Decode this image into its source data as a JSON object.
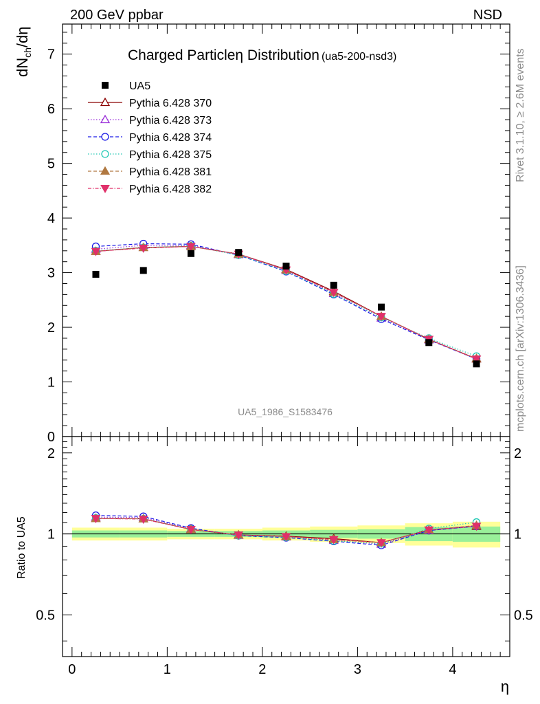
{
  "header": {
    "left": "200 GeV ppbar",
    "right": "NSD"
  },
  "side_labels": {
    "rivet": "Rivet 3.1.10, ≥ 2.6M events",
    "mcplots": "mcplots.cern.ch [arXiv:1306.3436]"
  },
  "chart_data": {
    "type": "scatter",
    "title": "Charged Particleη Distribution",
    "subtitle": "(ua5-200-nsd3)",
    "watermark": "UA5_1986_S1583476",
    "xlabel": "η",
    "ylabel": "dNch/dη",
    "ylabel_parts": {
      "main": "dN",
      "sub": "ch",
      "tail": "/dη"
    },
    "ratio_ylabel": "Ratio to UA5",
    "xlim": [
      -0.1,
      4.6
    ],
    "ylim": [
      0,
      7.55
    ],
    "ratio_ylim": [
      0.35,
      2.3
    ],
    "x_ticks": [
      "0",
      "1",
      "2",
      "3",
      "4"
    ],
    "y_ticks": [
      "0",
      "1",
      "2",
      "3",
      "4",
      "5",
      "6",
      "7"
    ],
    "ratio_ticks": [
      "0.5",
      "1",
      "2"
    ],
    "grid": false,
    "legend_position": "top-left",
    "x": [
      0.25,
      0.75,
      1.25,
      1.75,
      2.25,
      2.75,
      3.25,
      3.75,
      4.25
    ],
    "data": {
      "name": "UA5",
      "color": "#000000",
      "values": [
        2.97,
        3.04,
        3.35,
        3.37,
        3.12,
        2.77,
        2.37,
        1.72,
        1.33
      ],
      "band_inner": [
        0.03,
        0.03,
        0.025,
        0.025,
        0.03,
        0.035,
        0.04,
        0.06,
        0.065
      ],
      "band_outer": [
        0.055,
        0.055,
        0.045,
        0.045,
        0.055,
        0.065,
        0.075,
        0.095,
        0.11
      ]
    },
    "series": [
      {
        "name": "Pythia 6.428 370",
        "color": "#8b0000",
        "dash": "",
        "marker": "triangle-open",
        "values": [
          3.39,
          3.46,
          3.48,
          3.34,
          3.06,
          2.66,
          2.2,
          1.78,
          1.42
        ]
      },
      {
        "name": "Pythia 6.428 373",
        "color": "#9b30d9",
        "dash": "1.5,2.5",
        "marker": "triangle-open",
        "values": [
          3.43,
          3.5,
          3.5,
          3.33,
          3.04,
          2.62,
          2.17,
          1.77,
          1.43
        ]
      },
      {
        "name": "Pythia 6.428 374",
        "color": "#1a1ae6",
        "dash": "5,3",
        "marker": "circle-open",
        "values": [
          3.48,
          3.53,
          3.52,
          3.32,
          3.02,
          2.6,
          2.15,
          1.77,
          1.42
        ]
      },
      {
        "name": "Pythia 6.428 375",
        "color": "#20c8b4",
        "dash": "1.5,2.5",
        "marker": "circle-open",
        "values": [
          3.4,
          3.46,
          3.49,
          3.32,
          3.03,
          2.61,
          2.18,
          1.8,
          1.47
        ]
      },
      {
        "name": "Pythia 6.428 381",
        "color": "#b07840",
        "dash": "5,3",
        "marker": "triangle-filled",
        "values": [
          3.39,
          3.46,
          3.48,
          3.34,
          3.05,
          2.64,
          2.2,
          1.78,
          1.43
        ]
      },
      {
        "name": "Pythia 6.428 382",
        "color": "#e0306a",
        "dash": "5,2,1.5,2",
        "marker": "triangle-down-filled",
        "values": [
          3.39,
          3.45,
          3.48,
          3.34,
          3.05,
          2.64,
          2.2,
          1.78,
          1.42
        ]
      }
    ]
  }
}
